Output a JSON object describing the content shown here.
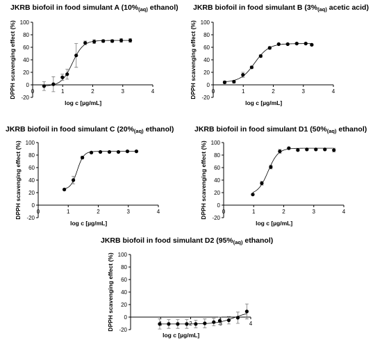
{
  "figure": {
    "background": "#ffffff",
    "ink": "#000000"
  },
  "chart_data": [
    {
      "type": "scatter",
      "title": {
        "main": "JKRB biofoil in food simulant A (10%",
        "sub": "(aq)",
        "tail": " ethanol)"
      },
      "xlabel": "log c [µg/mL]",
      "ylabel": "DPPH scavenging effect (%)",
      "xlim": [
        0,
        4
      ],
      "ylim": [
        -20,
        100
      ],
      "xticks": [
        "0",
        "1",
        "2",
        "3",
        "4"
      ],
      "yticks": [
        "-20",
        "0",
        "20",
        "40",
        "60",
        "80",
        "100"
      ],
      "grid": false,
      "fit_curve": true,
      "points": [
        {
          "x": 0.38,
          "y": -2,
          "err": 7
        },
        {
          "x": 0.69,
          "y": 1,
          "err": 12
        },
        {
          "x": 0.99,
          "y": 12,
          "err": 5
        },
        {
          "x": 1.15,
          "y": 17,
          "err": 8
        },
        {
          "x": 1.45,
          "y": 47,
          "err": 19
        },
        {
          "x": 1.75,
          "y": 67,
          "err": 3
        },
        {
          "x": 2.05,
          "y": 69,
          "err": 3
        },
        {
          "x": 2.35,
          "y": 70,
          "err": 2
        },
        {
          "x": 2.65,
          "y": 70,
          "err": 2
        },
        {
          "x": 2.95,
          "y": 71,
          "err": 3
        },
        {
          "x": 3.25,
          "y": 71,
          "err": 3
        }
      ]
    },
    {
      "type": "scatter",
      "title": {
        "main": "JKRB biofoil in food simulant B (3%",
        "sub": "(aq)",
        "tail": " acetic acid)"
      },
      "xlabel": "log c [µg/mL]",
      "ylabel": "DPPH scavenging effect (%)",
      "xlim": [
        0,
        4
      ],
      "ylim": [
        -20,
        100
      ],
      "xticks": [
        "0",
        "1",
        "2",
        "3",
        "4"
      ],
      "yticks": [
        "-20",
        "0",
        "20",
        "40",
        "60",
        "80",
        "100"
      ],
      "grid": false,
      "fit_curve": true,
      "points": [
        {
          "x": 0.38,
          "y": 4,
          "err": 2
        },
        {
          "x": 0.69,
          "y": 5,
          "err": 2
        },
        {
          "x": 0.99,
          "y": 16,
          "err": 4
        },
        {
          "x": 1.28,
          "y": 28,
          "err": 2
        },
        {
          "x": 1.58,
          "y": 46,
          "err": 2
        },
        {
          "x": 1.88,
          "y": 59,
          "err": 2
        },
        {
          "x": 2.18,
          "y": 65,
          "err": 1
        },
        {
          "x": 2.48,
          "y": 65,
          "err": 1
        },
        {
          "x": 2.78,
          "y": 66,
          "err": 1
        },
        {
          "x": 3.08,
          "y": 66,
          "err": 1
        },
        {
          "x": 3.28,
          "y": 64,
          "err": 1
        }
      ]
    },
    {
      "type": "scatter",
      "title": {
        "main": "JKRB biofoil in food simulant C (20%",
        "sub": "(aq)",
        "tail": " ethanol)"
      },
      "xlabel": "log c [µg/mL]",
      "ylabel": "DPPH scavenging effect (%)",
      "xlim": [
        0,
        4
      ],
      "ylim": [
        -20,
        100
      ],
      "xticks": [
        "0",
        "1",
        "2",
        "3",
        "4"
      ],
      "yticks": [
        "-20",
        "0",
        "20",
        "40",
        "60",
        "80",
        "100"
      ],
      "grid": false,
      "fit_curve": true,
      "points": [
        {
          "x": 0.87,
          "y": 25,
          "err": 1
        },
        {
          "x": 1.17,
          "y": 40,
          "err": 6
        },
        {
          "x": 1.47,
          "y": 76,
          "err": 2
        },
        {
          "x": 1.77,
          "y": 84,
          "err": 1
        },
        {
          "x": 2.07,
          "y": 85,
          "err": 1
        },
        {
          "x": 2.37,
          "y": 85,
          "err": 1
        },
        {
          "x": 2.67,
          "y": 85,
          "err": 1
        },
        {
          "x": 2.97,
          "y": 86,
          "err": 1
        },
        {
          "x": 3.27,
          "y": 86,
          "err": 1
        }
      ]
    },
    {
      "type": "scatter",
      "title": {
        "main": "JKRB biofoil in food simulant D1 (50%",
        "sub": "(aq)",
        "tail": " ethanol)"
      },
      "xlabel": "log c [µg/mL]",
      "ylabel": "DPPH scavenging effect (%)",
      "xlim": [
        0,
        4
      ],
      "ylim": [
        -20,
        100
      ],
      "xticks": [
        "0",
        "1",
        "2",
        "3",
        "4"
      ],
      "yticks": [
        "-20",
        "0",
        "20",
        "40",
        "60",
        "80",
        "100"
      ],
      "grid": false,
      "fit_curve": true,
      "points": [
        {
          "x": 0.97,
          "y": 17,
          "err": 1
        },
        {
          "x": 1.27,
          "y": 35,
          "err": 3
        },
        {
          "x": 1.57,
          "y": 61,
          "err": 3
        },
        {
          "x": 1.87,
          "y": 86,
          "err": 3
        },
        {
          "x": 2.17,
          "y": 91,
          "err": 1
        },
        {
          "x": 2.47,
          "y": 88,
          "err": 1
        },
        {
          "x": 2.77,
          "y": 89,
          "err": 1
        },
        {
          "x": 3.07,
          "y": 89,
          "err": 1
        },
        {
          "x": 3.37,
          "y": 89,
          "err": 1
        },
        {
          "x": 3.67,
          "y": 88,
          "err": 3
        }
      ]
    },
    {
      "type": "scatter",
      "title": {
        "main": "JKRB biofoil in food simulant D2 (95%",
        "sub": "(aq)",
        "tail": " ethanol)"
      },
      "xlabel": "log c [µg/mL]",
      "ylabel": "DPPH scavenging effect (%)",
      "xlim": [
        0,
        4
      ],
      "ylim": [
        -20,
        100
      ],
      "xticks": [
        "",
        "1",
        "2",
        "3",
        "4"
      ],
      "yticks": [
        "-20",
        "0",
        "20",
        "40",
        "60",
        "80",
        "100"
      ],
      "grid": false,
      "fit_curve": true,
      "points": [
        {
          "x": 0.97,
          "y": -11,
          "err": 8
        },
        {
          "x": 1.27,
          "y": -11,
          "err": 7
        },
        {
          "x": 1.57,
          "y": -11,
          "err": 7
        },
        {
          "x": 1.87,
          "y": -11,
          "err": 7
        },
        {
          "x": 2.17,
          "y": -11,
          "err": 6
        },
        {
          "x": 2.47,
          "y": -10,
          "err": 7
        },
        {
          "x": 2.77,
          "y": -8,
          "err": 6
        },
        {
          "x": 2.97,
          "y": -6,
          "err": 6
        },
        {
          "x": 3.27,
          "y": -5,
          "err": 6
        },
        {
          "x": 3.57,
          "y": -1,
          "err": 9
        },
        {
          "x": 3.87,
          "y": 9,
          "err": 12
        }
      ]
    }
  ]
}
